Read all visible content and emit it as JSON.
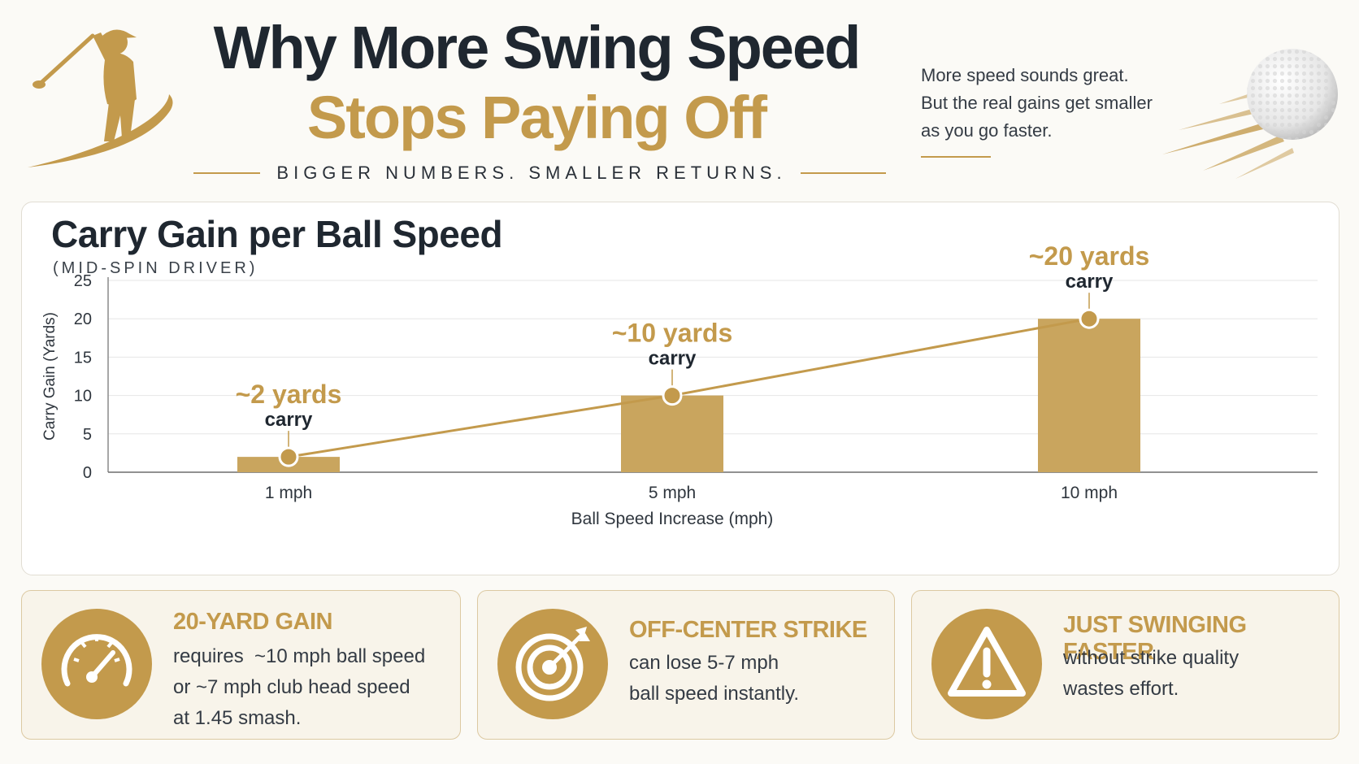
{
  "header": {
    "title_line1": "Why More Swing Speed",
    "title_line2": "Stops Paying Off",
    "tagline": "BIGGER NUMBERS. SMALLER RETURNS.",
    "intro_lines": [
      "More speed sounds great.",
      "But the real gains get smaller",
      "as you go faster."
    ]
  },
  "colors": {
    "gold": "#c39a4c",
    "bar": "#c9a55e",
    "dark": "#1f2730"
  },
  "chart_data": {
    "type": "bar",
    "title": "Carry Gain per Ball Speed",
    "subtitle": "(MID-SPIN DRIVER)",
    "xlabel": "Ball Speed Increase (mph)",
    "ylabel": "Carry Gain (Yards)",
    "categories": [
      "1 mph",
      "5 mph",
      "10 mph"
    ],
    "values": [
      2,
      10,
      20
    ],
    "ylim": [
      0,
      25
    ],
    "yticks": [
      0,
      5,
      10,
      15,
      20,
      25
    ],
    "grid": true,
    "annotations": [
      {
        "value_text": "~2 yards",
        "sub_text": "carry"
      },
      {
        "value_text": "~10 yards",
        "sub_text": "carry"
      },
      {
        "value_text": "~20 yards",
        "sub_text": "carry"
      }
    ]
  },
  "cards": [
    {
      "icon": "speedometer-icon",
      "title": "20-YARD GAIN",
      "lines": [
        "requires  ~10 mph ball speed",
        "or ~7 mph club head speed",
        "at 1.45 smash."
      ]
    },
    {
      "icon": "target-icon",
      "title": "OFF-CENTER STRIKE",
      "lines": [
        "can lose 5-7 mph",
        "ball speed instantly."
      ]
    },
    {
      "icon": "warning-icon",
      "title": "JUST SWINGING FASTER",
      "lines": [
        "without strike quality",
        "wastes effort."
      ]
    }
  ]
}
